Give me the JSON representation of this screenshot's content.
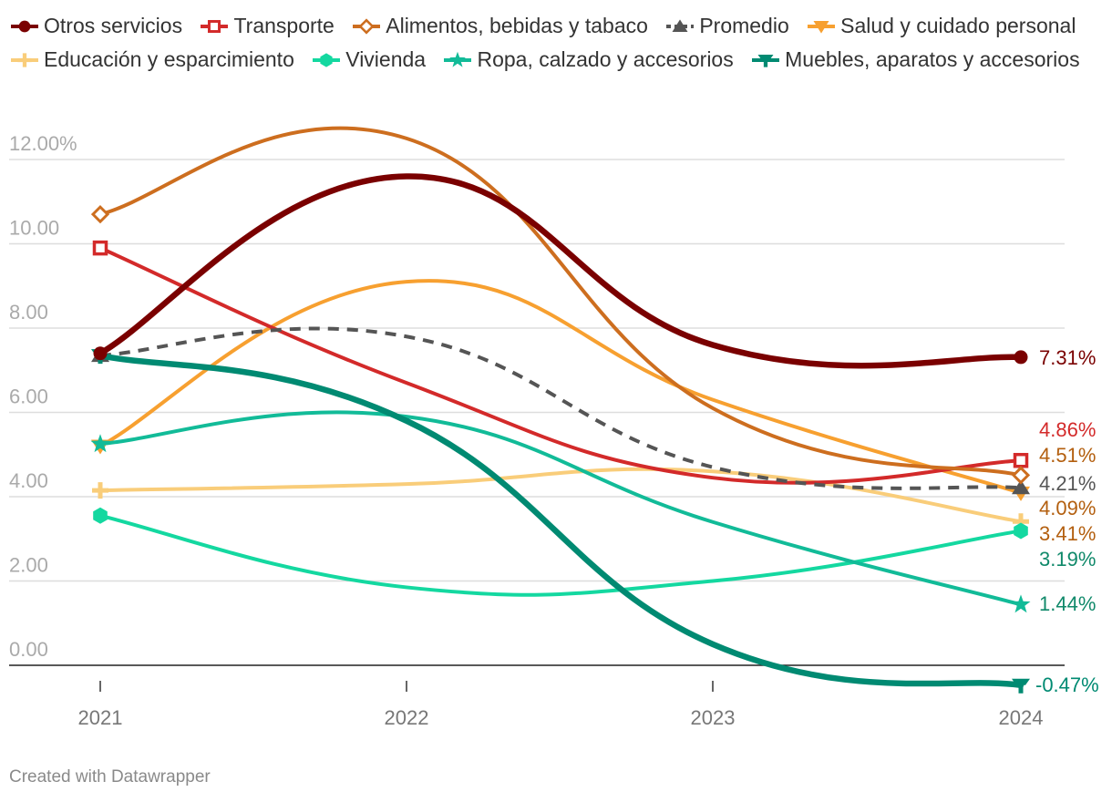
{
  "chart_data": {
    "type": "line",
    "categories": [
      "2021",
      "2022",
      "2023",
      "2024"
    ],
    "ylim": [
      0,
      12
    ],
    "y_ticks": [
      {
        "value": 12,
        "label": "12.00%"
      },
      {
        "value": 10,
        "label": "10.00"
      },
      {
        "value": 8,
        "label": "8.00"
      },
      {
        "value": 6,
        "label": "6.00"
      },
      {
        "value": 4,
        "label": "4.00"
      },
      {
        "value": 2,
        "label": "2.00"
      },
      {
        "value": 0,
        "label": "0.00"
      }
    ],
    "series": [
      {
        "name": "Otros servicios",
        "color": "#7a0000",
        "marker": "circle",
        "dash": false,
        "thick": true,
        "values": [
          7.4,
          11.6,
          7.6,
          7.31
        ],
        "end_label": "7.31%",
        "label_color": "#7a0000"
      },
      {
        "name": "Transporte",
        "color": "#d32a2a",
        "marker": "square",
        "dash": false,
        "thick": false,
        "values": [
          9.9,
          6.7,
          4.45,
          4.86
        ],
        "end_label": "4.86%",
        "label_color": "#d32a2a"
      },
      {
        "name": "Alimentos, bebidas y tabaco",
        "color": "#cd6e1f",
        "marker": "diamond",
        "dash": false,
        "thick": false,
        "values": [
          10.7,
          12.5,
          6.1,
          4.51
        ],
        "end_label": "4.51%",
        "label_color": "#b35f0f"
      },
      {
        "name": "Promedio",
        "color": "#555555",
        "marker": "triangle",
        "dash": true,
        "thick": false,
        "values": [
          7.35,
          7.8,
          4.7,
          4.21
        ],
        "end_label": "4.21%",
        "label_color": "#555555"
      },
      {
        "name": "Salud y cuidado personal",
        "color": "#f7a030",
        "marker": "triangle-down",
        "dash": false,
        "thick": false,
        "values": [
          5.2,
          9.1,
          6.3,
          4.09
        ],
        "end_label": "4.09%",
        "label_color": "#b35f0f"
      },
      {
        "name": "Educación y esparcimiento",
        "color": "#f9cd7a",
        "marker": "plus",
        "dash": false,
        "thick": false,
        "values": [
          4.15,
          4.3,
          4.6,
          3.41
        ],
        "end_label": "3.41%",
        "label_color": "#b35f0f"
      },
      {
        "name": "Vivienda",
        "color": "#14d8a0",
        "marker": "hexagon",
        "dash": false,
        "thick": false,
        "values": [
          3.55,
          1.85,
          2.0,
          3.19
        ],
        "end_label": "3.19%",
        "label_color": "#10896a"
      },
      {
        "name": "Ropa, calzado y accesorios",
        "color": "#12bb98",
        "marker": "star",
        "dash": false,
        "thick": false,
        "values": [
          5.25,
          5.9,
          3.4,
          1.44
        ],
        "end_label": "1.44%",
        "label_color": "#10896a"
      },
      {
        "name": "Muebles, aparatos y accesorios",
        "color": "#008a72",
        "marker": "arrow",
        "dash": false,
        "thick": true,
        "values": [
          7.35,
          5.8,
          0.5,
          -0.47
        ],
        "end_label": "-0.47%",
        "label_color": "#008a72"
      }
    ]
  },
  "footer": {
    "credit": "Created with Datawrapper"
  }
}
